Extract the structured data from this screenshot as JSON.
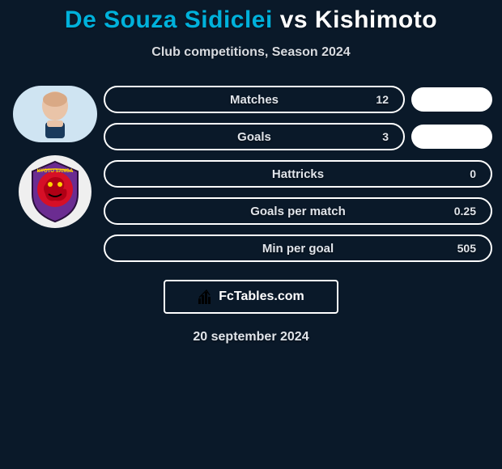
{
  "colors": {
    "background": "#0a1929",
    "pill_border": "#ffffff",
    "text_light": "#e0e4ea",
    "subtitle": "#d8dbe0",
    "title_player1": "#00b1db",
    "title_vs": "#ffffff",
    "title_player2": "#ffffff",
    "small_pill": "#ffffff",
    "brand_border": "#ffffff",
    "badge_red": "#d60f26",
    "badge_purple": "#6b2c91"
  },
  "title": {
    "player1": "De Souza Sidiclei",
    "vs": "vs",
    "player2": "Kishimoto"
  },
  "subtitle": "Club competitions, Season 2024",
  "stats": [
    {
      "label": "Matches",
      "value_right": "12",
      "show_side_pill": true
    },
    {
      "label": "Goals",
      "value_right": "3",
      "show_side_pill": true
    },
    {
      "label": "Hattricks",
      "value_right": "0",
      "show_side_pill": false
    },
    {
      "label": "Goals per match",
      "value_right": "0.25",
      "show_side_pill": false
    },
    {
      "label": "Min per goal",
      "value_right": "505",
      "show_side_pill": false
    }
  ],
  "brand": "FcTables.com",
  "date": "20 september 2024",
  "icons": {
    "player1": "player-head",
    "team": "kyoto-sanga-badge",
    "brand": "bars-icon"
  }
}
